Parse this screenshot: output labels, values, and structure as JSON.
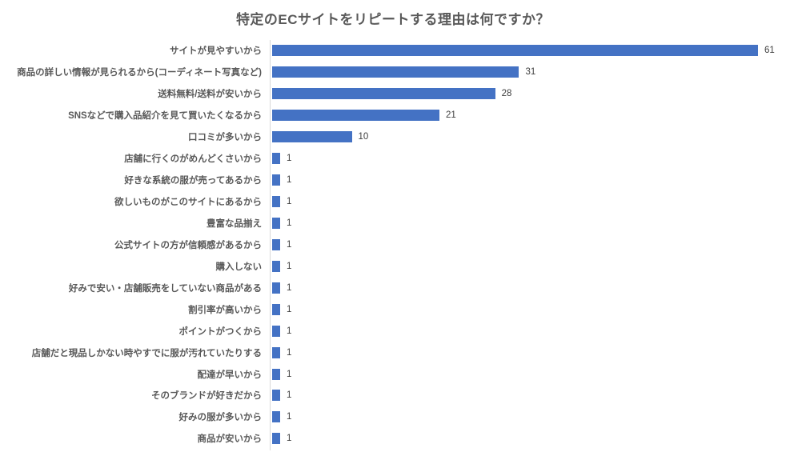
{
  "title": "特定のECサイトをリピートする理由は何ですか？",
  "colors": {
    "bar": "#4472c4",
    "axis_line": "#d9d9d9",
    "category_label": "#595959",
    "value_label": "#404040",
    "title": "#595959",
    "background": "#ffffff"
  },
  "chart_data": {
    "type": "bar",
    "orientation": "horizontal",
    "title": "特定のECサイトをリピートする理由は何ですか？",
    "categories": [
      "サイトが見やすいから",
      "商品の詳しい情報が見られるから(コーディネート写真など)",
      "送料無料/送料が安いから",
      "SNSなどで購入品紹介を見て買いたくなるから",
      "口コミが多いから",
      "店舗に行くのがめんどくさいから",
      "好きな系統の服が売ってあるから",
      "欲しいものがこのサイトにあるから",
      "豊富な品揃え",
      "公式サイトの方が信頼感があるから",
      "購入しない",
      "好みで安い・店舗販売をしていない商品がある",
      "割引率が高いから",
      "ポイントがつくから",
      "店舗だと現品しかない時やすでに服が汚れていたりする",
      "配達が早いから",
      "そのブランドが好きだから",
      "好みの服が多いから",
      "商品が安いから"
    ],
    "values": [
      61,
      31,
      28,
      21,
      10,
      1,
      1,
      1,
      1,
      1,
      1,
      1,
      1,
      1,
      1,
      1,
      1,
      1,
      1
    ],
    "xlabel": "",
    "ylabel": "",
    "xlim": [
      0,
      64
    ],
    "grid": false,
    "legend": "none",
    "data_labels": true
  }
}
